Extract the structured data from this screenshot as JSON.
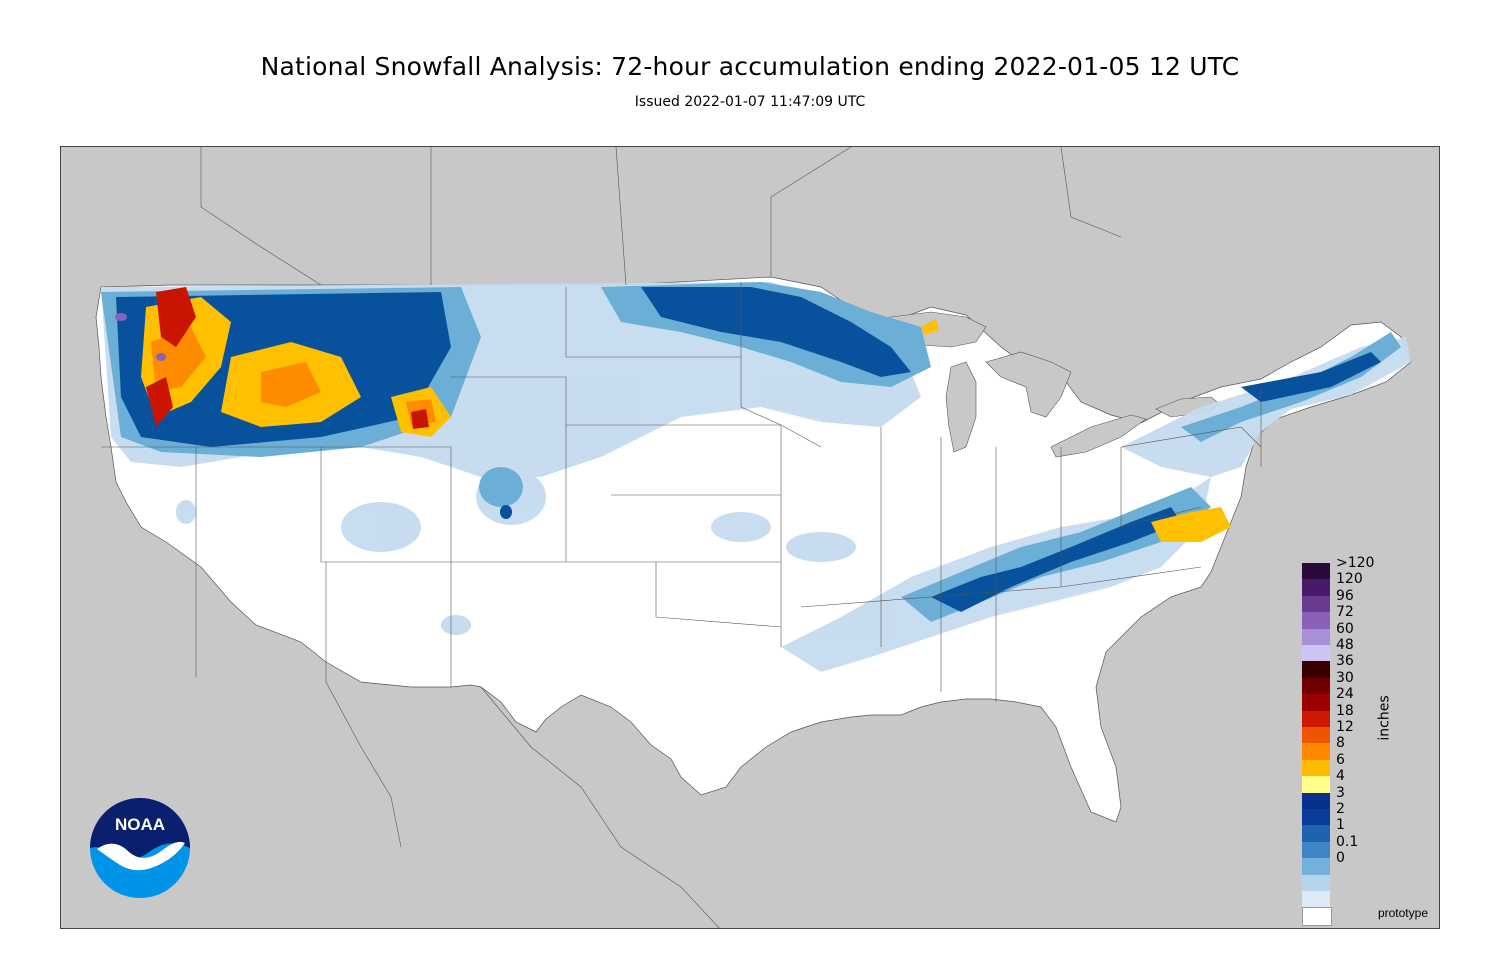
{
  "title": "National Snowfall Analysis: 72-hour accumulation ending 2022-01-05 12 UTC",
  "subtitle": "Issued 2022-01-07 11:47:09 UTC",
  "legend": {
    "units": "inches",
    "items": [
      {
        "label": ">120",
        "color": "#2a0a3a"
      },
      {
        "label": "120",
        "color": "#4a1a6a"
      },
      {
        "label": "96",
        "color": "#6a3a90"
      },
      {
        "label": "72",
        "color": "#8a60b8"
      },
      {
        "label": "60",
        "color": "#a890d8"
      },
      {
        "label": "48",
        "color": "#ccc4f4"
      },
      {
        "label": "36",
        "color": "#3a0000"
      },
      {
        "label": "30",
        "color": "#700000"
      },
      {
        "label": "24",
        "color": "#9a0000"
      },
      {
        "label": "18",
        "color": "#cc1a00"
      },
      {
        "label": "12",
        "color": "#ee5500"
      },
      {
        "label": "8",
        "color": "#ff8800"
      },
      {
        "label": "6",
        "color": "#ffbb00"
      },
      {
        "label": "4",
        "color": "#ffff88"
      },
      {
        "label": "3",
        "color": "#08308c"
      },
      {
        "label": "2",
        "color": "#0a3c9c"
      },
      {
        "label": "1",
        "color": "#1f62ad"
      },
      {
        "label": "0.1",
        "color": "#3e86c6"
      },
      {
        "label": "0",
        "color": "#74b0dc"
      },
      {
        "label": "",
        "color": "#b6d4ea"
      },
      {
        "label": "",
        "color": "#deebf7"
      },
      {
        "label": "",
        "color": "#ffffff"
      }
    ]
  },
  "logo_text": "NOAA",
  "watermark": "prototype",
  "colors": {
    "background_gray": "#c8c8c8",
    "land_white": "#ffffff",
    "light_blue": "#c6dbef",
    "mid_blue": "#6baed6",
    "dark_blue": "#08519c",
    "navy": "#08306b",
    "yellow": "#ffd000",
    "orange": "#ff8c00",
    "red": "#c81400"
  }
}
